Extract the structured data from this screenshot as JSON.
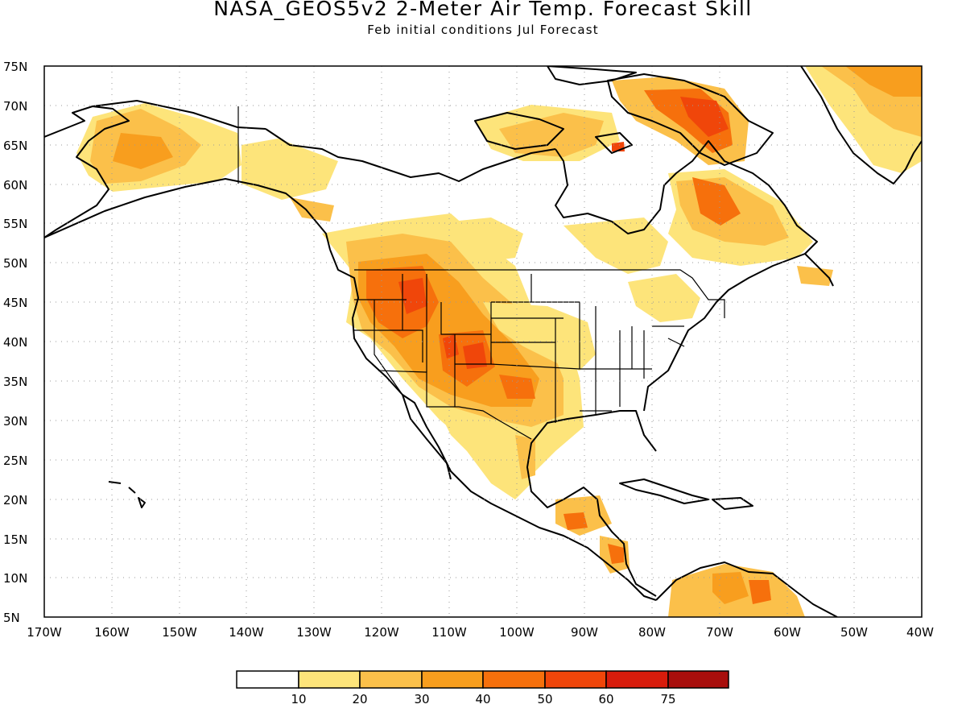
{
  "title": "NASA_GEOS5v2 2-Meter Air Temp. Forecast Skill",
  "subtitle": "Feb initial conditions   Jul Forecast",
  "map": {
    "lon_range": [
      -170,
      -40
    ],
    "lat_range": [
      5,
      75
    ],
    "grid": true,
    "lon_ticks": [
      "170W",
      "160W",
      "150W",
      "140W",
      "130W",
      "120W",
      "110W",
      "100W",
      "90W",
      "80W",
      "70W",
      "60W",
      "50W",
      "40W"
    ],
    "lat_ticks": [
      "75N",
      "70N",
      "65N",
      "60N",
      "55N",
      "50N",
      "45N",
      "40N",
      "35N",
      "30N",
      "25N",
      "20N",
      "15N",
      "10N",
      "5N"
    ]
  },
  "colorbar": {
    "labels": [
      "10",
      "20",
      "30",
      "40",
      "50",
      "60",
      "75"
    ],
    "colors": [
      "#ffffff",
      "#fde47a",
      "#fbc04a",
      "#f89e1e",
      "#f6700c",
      "#f0460a",
      "#d81c0c",
      "#a80e0c"
    ]
  },
  "chart_data": {
    "type": "heatmap",
    "title": "NASA_GEOS5v2 2-Meter Air Temp. Forecast Skill",
    "subtitle": "Feb initial conditions   Jul Forecast",
    "xlim": [
      -170,
      -40
    ],
    "ylim": [
      5,
      75
    ],
    "levels": [
      10,
      20,
      30,
      40,
      50,
      60,
      75
    ],
    "regions": [
      {
        "lon": -155,
        "lat": 65,
        "level": 30
      },
      {
        "lon": -130,
        "lat": 62,
        "level": 20
      },
      {
        "lon": -117,
        "lat": 45,
        "level": 50
      },
      {
        "lon": -110,
        "lat": 40,
        "level": 50
      },
      {
        "lon": -107,
        "lat": 37,
        "level": 50
      },
      {
        "lon": -100,
        "lat": 34,
        "level": 40
      },
      {
        "lon": -110,
        "lat": 32,
        "level": 40
      },
      {
        "lon": -95,
        "lat": 40,
        "level": 20
      },
      {
        "lon": -70,
        "lat": 70,
        "level": 60
      },
      {
        "lon": -68,
        "lat": 57,
        "level": 50
      },
      {
        "lon": -85,
        "lat": 66,
        "level": 30
      },
      {
        "lon": -45,
        "lat": 70,
        "level": 30
      },
      {
        "lon": -90,
        "lat": 17,
        "level": 40
      },
      {
        "lon": -70,
        "lat": 8,
        "level": 30
      }
    ]
  }
}
